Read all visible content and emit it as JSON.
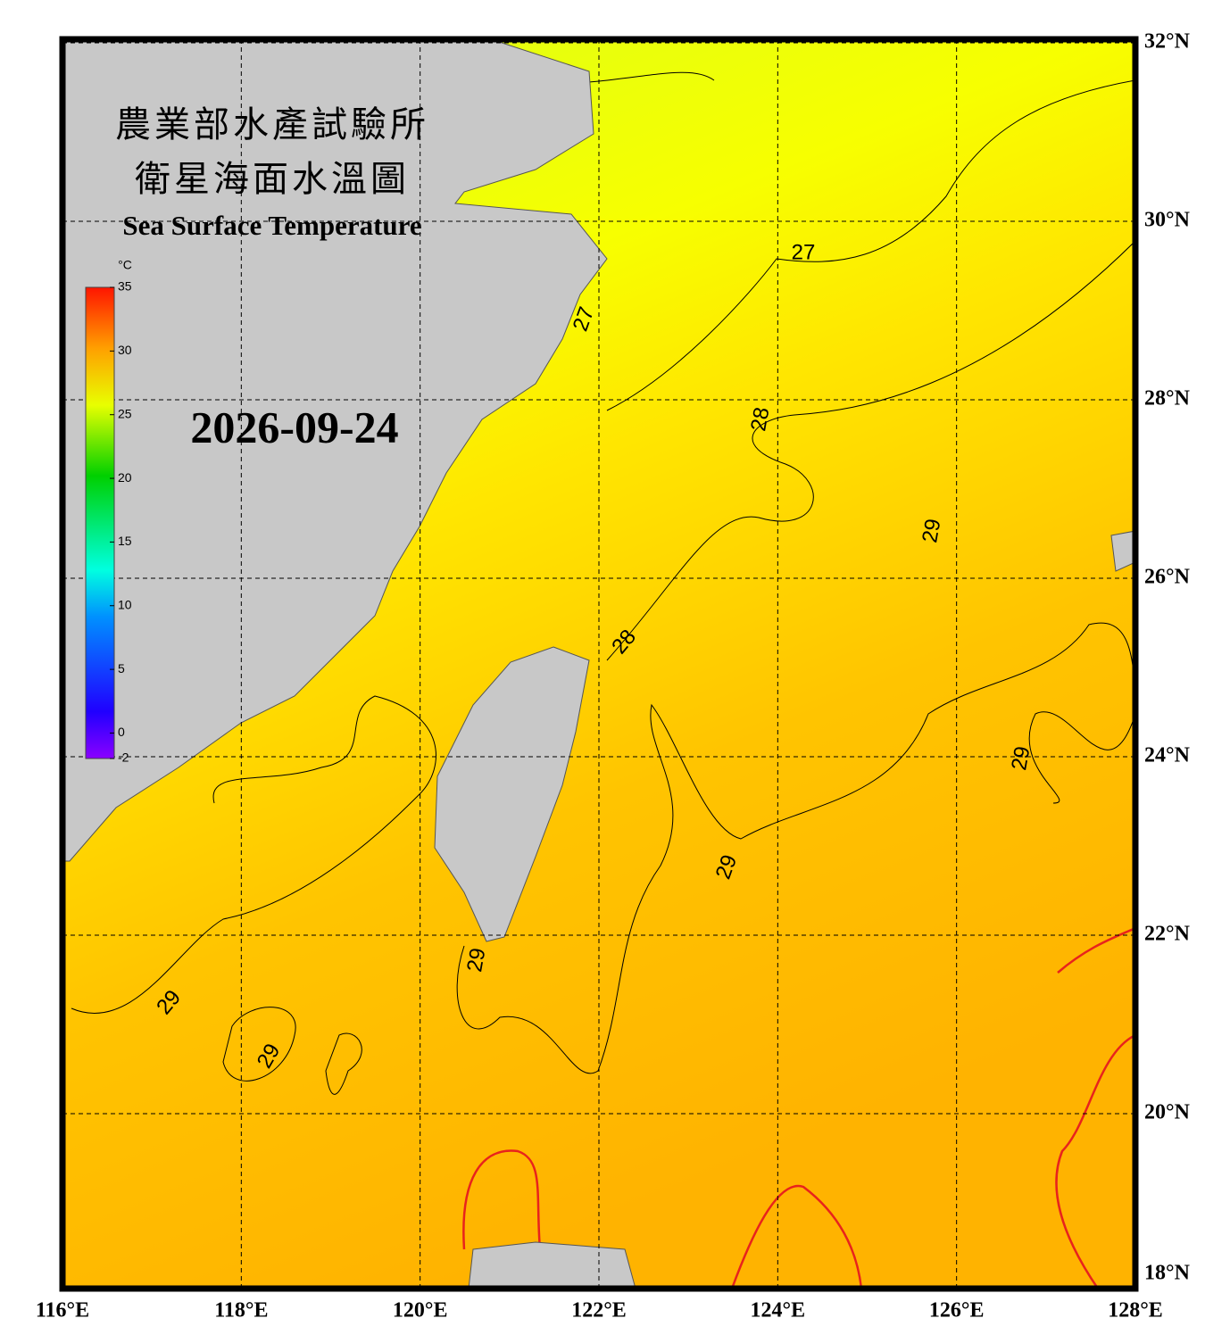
{
  "header": {
    "title_line1": "農業部水產試驗所",
    "title_line2": "衛星海面水溫圖",
    "subtitle": "Sea Surface Temperature",
    "date": "2026-09-24"
  },
  "colorbar": {
    "unit": "°C",
    "range": [
      -2,
      35
    ],
    "ticks": [
      35,
      30,
      25,
      20,
      15,
      10,
      5,
      0,
      -2
    ]
  },
  "map": {
    "xlim": [
      116,
      128
    ],
    "ylim": [
      18,
      32
    ],
    "xticks": [
      {
        "value": 116,
        "label": "116°E"
      },
      {
        "value": 118,
        "label": "118°E"
      },
      {
        "value": 120,
        "label": "120°E"
      },
      {
        "value": 122,
        "label": "122°E"
      },
      {
        "value": 124,
        "label": "124°E"
      },
      {
        "value": 126,
        "label": "126°E"
      },
      {
        "value": 128,
        "label": "128°E"
      }
    ],
    "yticks": [
      {
        "value": 18,
        "label": "18°N"
      },
      {
        "value": 20,
        "label": "20°N"
      },
      {
        "value": 22,
        "label": "22°N"
      },
      {
        "value": 24,
        "label": "24°N"
      },
      {
        "value": 26,
        "label": "26°N"
      },
      {
        "value": 28,
        "label": "28°N"
      },
      {
        "value": 30,
        "label": "30°N"
      },
      {
        "value": 32,
        "label": "32°N"
      }
    ],
    "contour_labels": [
      27,
      27,
      28,
      28,
      29,
      29,
      29,
      29,
      29,
      29
    ]
  }
}
